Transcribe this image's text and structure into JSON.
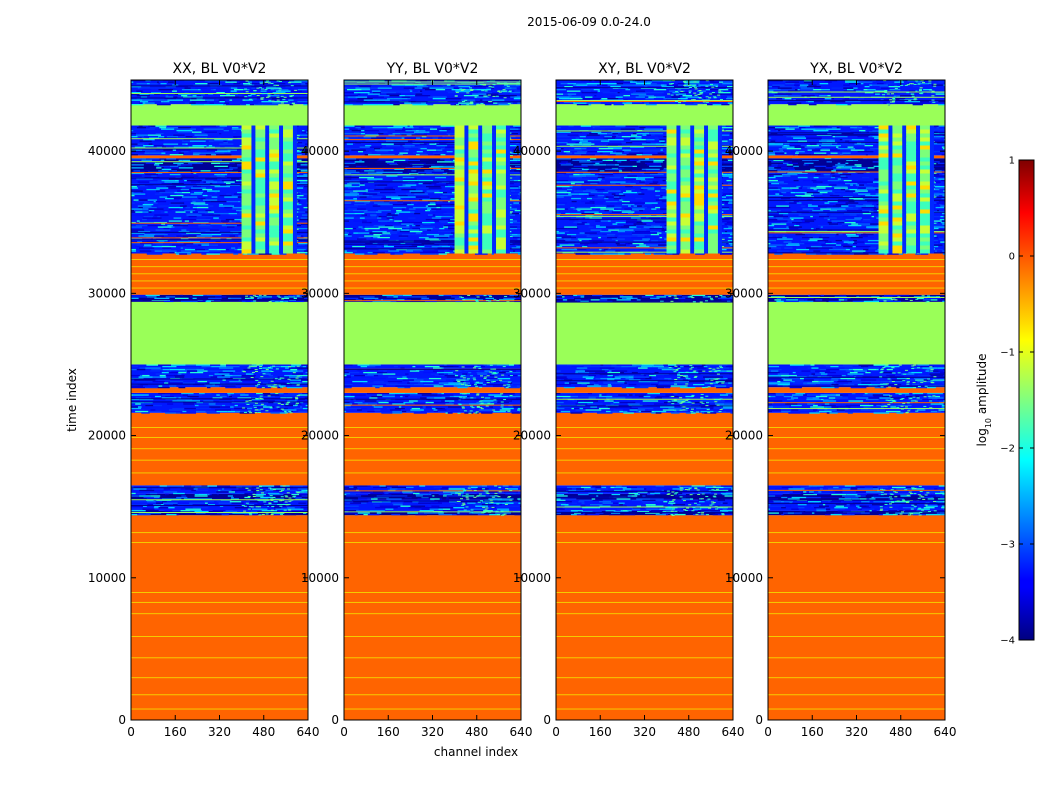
{
  "suptitle": "2015-06-09 0.0-24.0",
  "chart_data": {
    "type": "heatmap",
    "title": "2015-06-09 0.0-24.0",
    "xlabel": "channel index",
    "ylabel": "time index",
    "xlim": [
      0,
      640
    ],
    "ylim": [
      0,
      45000
    ],
    "xticks": [
      "0",
      "160",
      "320",
      "480",
      "640"
    ],
    "yticks": [
      "0",
      "10000",
      "20000",
      "30000",
      "40000"
    ],
    "panels": [
      {
        "title": "XX, BL V0*V2",
        "pol": "XX"
      },
      {
        "title": "YY, BL V0*V2",
        "pol": "YY"
      },
      {
        "title": "XY, BL V0*V2",
        "pol": "XY"
      },
      {
        "title": "YX, BL V0*V2",
        "pol": "YX"
      }
    ],
    "colorbar": {
      "label_prefix": "log",
      "label_sub": "10",
      "label_suffix": " amplitude",
      "range": [
        -4,
        1
      ],
      "ticks": [
        "1",
        "0",
        "−1",
        "−2",
        "−3",
        "−4"
      ],
      "colormap": "jet"
    },
    "bands": [
      {
        "t0": 0,
        "t1": 14400,
        "kind": "orange"
      },
      {
        "t0": 14400,
        "t1": 14700,
        "kind": "dark"
      },
      {
        "t0": 14700,
        "t1": 15500,
        "kind": "noise"
      },
      {
        "t0": 15500,
        "t1": 15900,
        "kind": "dark"
      },
      {
        "t0": 15900,
        "t1": 16500,
        "kind": "noise"
      },
      {
        "t0": 16500,
        "t1": 21600,
        "kind": "orange"
      },
      {
        "t0": 21600,
        "t1": 23000,
        "kind": "noise"
      },
      {
        "t0": 23000,
        "t1": 23400,
        "kind": "orange"
      },
      {
        "t0": 23400,
        "t1": 25000,
        "kind": "noise"
      },
      {
        "t0": 25000,
        "t1": 29400,
        "kind": "green"
      },
      {
        "t0": 29400,
        "t1": 29900,
        "kind": "dark"
      },
      {
        "t0": 29900,
        "t1": 32800,
        "kind": "orange"
      },
      {
        "t0": 32800,
        "t1": 38500,
        "kind": "noise"
      },
      {
        "t0": 38500,
        "t1": 39500,
        "kind": "dark"
      },
      {
        "t0": 39500,
        "t1": 39700,
        "kind": "orange"
      },
      {
        "t0": 39700,
        "t1": 41800,
        "kind": "noise"
      },
      {
        "t0": 41800,
        "t1": 43300,
        "kind": "green"
      },
      {
        "t0": 43300,
        "t1": 45000,
        "kind": "noise"
      }
    ],
    "highlight_region": {
      "ch0": 400,
      "ch1": 600,
      "t0": 32800,
      "t1": 41800
    },
    "orange_stripes": [
      800,
      1800,
      3000,
      4400,
      5900,
      7500,
      8300,
      9000,
      12500,
      13200,
      17400,
      18300,
      19100,
      19900,
      20600,
      30400,
      30900,
      31400,
      31900,
      32400
    ]
  }
}
